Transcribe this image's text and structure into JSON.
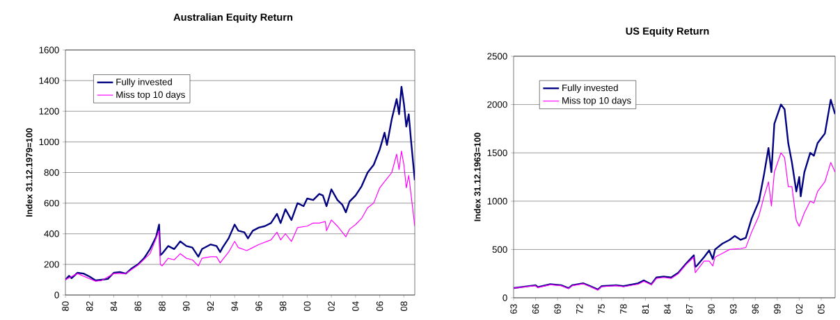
{
  "chart_data": [
    {
      "type": "line",
      "title": "Australian Equity Return",
      "ylabel": "Index 31.12.1979=100",
      "xlim": [
        1980,
        2008.9
      ],
      "ylim": [
        0,
        1600
      ],
      "yticks": [
        0,
        200,
        400,
        600,
        800,
        1000,
        1200,
        1400,
        1600
      ],
      "xticks": [
        {
          "value": 1980,
          "label": "80"
        },
        {
          "value": 1982,
          "label": "82"
        },
        {
          "value": 1984,
          "label": "84"
        },
        {
          "value": 1986,
          "label": "86"
        },
        {
          "value": 1988,
          "label": "88"
        },
        {
          "value": 1990,
          "label": "90"
        },
        {
          "value": 1992,
          "label": "92"
        },
        {
          "value": 1994,
          "label": "94"
        },
        {
          "value": 1996,
          "label": "96"
        },
        {
          "value": 1998,
          "label": "98"
        },
        {
          "value": 2000,
          "label": "00"
        },
        {
          "value": 2002,
          "label": "02"
        },
        {
          "value": 2004,
          "label": "04"
        },
        {
          "value": 2006,
          "label": "06"
        },
        {
          "value": 2008,
          "label": "08"
        }
      ],
      "grid": "y",
      "legend": "top left",
      "series": [
        {
          "name": "Fully invested",
          "color": "#000080",
          "x": [
            1980.0,
            1980.3,
            1980.5,
            1981.0,
            1981.5,
            1982.0,
            1982.5,
            1983.0,
            1983.5,
            1984.0,
            1984.5,
            1985.0,
            1985.5,
            1986.0,
            1986.5,
            1987.0,
            1987.5,
            1987.75,
            1987.85,
            1988.0,
            1988.5,
            1989.0,
            1989.5,
            1990.0,
            1990.5,
            1991.0,
            1991.3,
            1992.0,
            1992.5,
            1992.8,
            1993.0,
            1993.5,
            1994.0,
            1994.3,
            1994.8,
            1995.1,
            1995.5,
            1996.0,
            1996.5,
            1997.0,
            1997.5,
            1997.8,
            1998.2,
            1998.7,
            1999.2,
            1999.7,
            2000.0,
            2000.5,
            2001.0,
            2001.3,
            2001.6,
            2002.0,
            2002.5,
            2002.9,
            2003.2,
            2003.5,
            2004.0,
            2004.5,
            2005.0,
            2005.5,
            2006.0,
            2006.4,
            2006.6,
            2007.0,
            2007.4,
            2007.6,
            2007.8,
            2008.0,
            2008.2,
            2008.4,
            2008.6,
            2008.9
          ],
          "values": [
            100,
            125,
            110,
            145,
            140,
            120,
            95,
            100,
            105,
            145,
            150,
            140,
            175,
            200,
            240,
            300,
            380,
            460,
            260,
            270,
            320,
            300,
            350,
            320,
            310,
            250,
            300,
            330,
            320,
            280,
            310,
            370,
            460,
            420,
            410,
            370,
            420,
            440,
            450,
            470,
            530,
            470,
            560,
            490,
            600,
            580,
            630,
            620,
            660,
            650,
            580,
            690,
            620,
            590,
            540,
            610,
            650,
            710,
            800,
            850,
            950,
            1060,
            980,
            1150,
            1280,
            1180,
            1360,
            1250,
            1100,
            1180,
            1000,
            750
          ]
        },
        {
          "name": "Miss top 10 days",
          "color": "#ff00ff",
          "x": [
            1980.0,
            1981.0,
            1982.5,
            1983.0,
            1984.0,
            1985.0,
            1986.0,
            1987.0,
            1987.75,
            1987.85,
            1988.0,
            1988.5,
            1989.0,
            1989.5,
            1990.0,
            1990.5,
            1991.0,
            1991.3,
            1992.0,
            1992.5,
            1992.8,
            1993.5,
            1994.0,
            1994.3,
            1995.0,
            1995.5,
            1996.0,
            1997.0,
            1997.5,
            1997.8,
            1998.2,
            1998.7,
            1999.2,
            2000.0,
            2000.5,
            2001.0,
            2001.5,
            2001.6,
            2002.0,
            2002.5,
            2003.2,
            2003.5,
            2004.0,
            2004.5,
            2005.0,
            2005.5,
            2006.0,
            2006.4,
            2007.0,
            2007.4,
            2007.6,
            2007.8,
            2008.0,
            2008.2,
            2008.4,
            2008.6,
            2008.9
          ],
          "values": [
            100,
            140,
            90,
            95,
            140,
            140,
            195,
            270,
            420,
            200,
            190,
            240,
            230,
            270,
            240,
            230,
            190,
            240,
            250,
            250,
            210,
            280,
            350,
            310,
            290,
            310,
            330,
            360,
            410,
            360,
            400,
            350,
            440,
            450,
            470,
            470,
            480,
            420,
            490,
            450,
            380,
            430,
            460,
            500,
            570,
            600,
            700,
            740,
            800,
            920,
            820,
            940,
            850,
            700,
            780,
            650,
            450
          ]
        }
      ]
    },
    {
      "type": "line",
      "title": "US Equity Return",
      "ylabel": "Index 31.12.1963=100",
      "xlim": [
        1963,
        2006.9
      ],
      "ylim": [
        0,
        2500
      ],
      "yticks": [
        0,
        500,
        1000,
        1500,
        2000,
        2500
      ],
      "xticks": [
        {
          "value": 1963,
          "label": "63"
        },
        {
          "value": 1966,
          "label": "66"
        },
        {
          "value": 1969,
          "label": "69"
        },
        {
          "value": 1972,
          "label": "72"
        },
        {
          "value": 1975,
          "label": "75"
        },
        {
          "value": 1978,
          "label": "78"
        },
        {
          "value": 1981,
          "label": "81"
        },
        {
          "value": 1984,
          "label": "84"
        },
        {
          "value": 1987,
          "label": "87"
        },
        {
          "value": 1990,
          "label": "90"
        },
        {
          "value": 1993,
          "label": "93"
        },
        {
          "value": 1996,
          "label": "96"
        },
        {
          "value": 1999,
          "label": "99"
        },
        {
          "value": 2002,
          "label": "02"
        },
        {
          "value": 2005,
          "label": "05"
        }
      ],
      "grid": "y",
      "legend": "top left",
      "series": [
        {
          "name": "Fully invested",
          "color": "#000080",
          "x": [
            1963,
            1966,
            1966.3,
            1968,
            1969.5,
            1970.5,
            1971,
            1972.5,
            1973.5,
            1974.5,
            1975,
            1977,
            1978,
            1980,
            1980.8,
            1981.8,
            1982.5,
            1983.5,
            1984.5,
            1985.5,
            1986.5,
            1987.6,
            1987.8,
            1988,
            1989,
            1989.7,
            1990.2,
            1990.5,
            1991.5,
            1992.5,
            1993.2,
            1994,
            1994.7,
            1995.5,
            1996.5,
            1997.2,
            1997.8,
            1998.2,
            1998.6,
            1999.5,
            2000,
            2000.5,
            2001,
            2001.6,
            2002,
            2002.2,
            2002.7,
            2003.5,
            2004,
            2004.5,
            2005,
            2005.5,
            2006.3,
            2006.9
          ],
          "values": [
            100,
            130,
            110,
            140,
            130,
            100,
            130,
            150,
            120,
            85,
            120,
            130,
            120,
            150,
            180,
            140,
            210,
            220,
            210,
            260,
            350,
            440,
            320,
            330,
            420,
            490,
            400,
            500,
            560,
            600,
            640,
            600,
            620,
            820,
            1000,
            1280,
            1550,
            1300,
            1800,
            2000,
            1950,
            1600,
            1400,
            1100,
            1250,
            1050,
            1300,
            1500,
            1470,
            1600,
            1650,
            1700,
            2050,
            1900
          ]
        },
        {
          "name": "Miss top 10 days",
          "color": "#ff00ff",
          "x": [
            1963,
            1966,
            1966.3,
            1968,
            1969.5,
            1970.5,
            1971,
            1972.5,
            1973.5,
            1974.5,
            1975,
            1977,
            1978,
            1980,
            1980.8,
            1981.8,
            1982.5,
            1983.5,
            1984.5,
            1985.5,
            1986.5,
            1987.6,
            1987.8,
            1989,
            1989.7,
            1990.2,
            1990.5,
            1991.5,
            1992.5,
            1994,
            1994.7,
            1995.5,
            1996.5,
            1997.2,
            1997.8,
            1998.2,
            1998.6,
            1999.5,
            2000,
            2000.5,
            2001,
            2001.6,
            2002,
            2002.7,
            2003.5,
            2004,
            2004.5,
            2005,
            2005.5,
            2006.3,
            2006.9
          ],
          "values": [
            100,
            125,
            105,
            135,
            125,
            95,
            125,
            145,
            115,
            80,
            115,
            125,
            115,
            140,
            170,
            135,
            200,
            210,
            200,
            250,
            340,
            420,
            260,
            380,
            380,
            330,
            420,
            460,
            500,
            510,
            520,
            680,
            850,
            1050,
            1200,
            950,
            1300,
            1500,
            1450,
            1150,
            1150,
            800,
            740,
            880,
            1000,
            980,
            1100,
            1150,
            1200,
            1400,
            1300
          ]
        }
      ]
    }
  ]
}
